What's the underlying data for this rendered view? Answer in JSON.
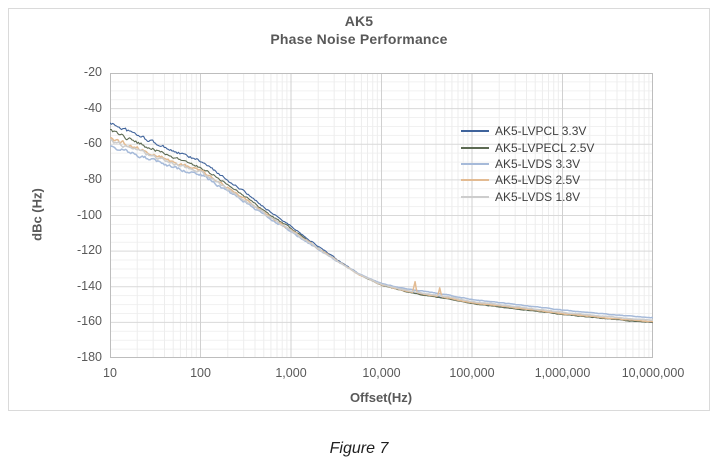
{
  "figure_caption": "Figure 7",
  "chart_data": {
    "type": "line",
    "title": "AK5",
    "subtitle": "Phase Noise Performance",
    "xlabel": "Offset(Hz)",
    "ylabel": "dBc (Hz)",
    "x_scale": "log",
    "x_range": [
      10,
      10000000
    ],
    "y_range": [
      -180,
      -20
    ],
    "y_major_step": 20,
    "y_minor_step": 5,
    "grid": true,
    "legend_position": "inside-upper-right",
    "x_ticks": [
      "10",
      "100",
      "1,000",
      "10,000",
      "100,000",
      "1,000,000",
      "10,000,000"
    ],
    "x_tick_values": [
      10,
      100,
      1000,
      10000,
      100000,
      1000000,
      10000000
    ],
    "y_ticks": [
      -20,
      -40,
      -60,
      -80,
      -100,
      -120,
      -140,
      -160,
      -180
    ],
    "grid_colors": {
      "major": "#d9d9d9",
      "minor": "#f1f1f1",
      "border": "#bdbdbd"
    },
    "series": [
      {
        "name": "AK5-LVPCL 3.3V",
        "color": "#3f639b",
        "points": [
          [
            10,
            -48.0
          ],
          [
            18,
            -53.8
          ],
          [
            32,
            -59.5
          ],
          [
            56,
            -64.8
          ],
          [
            100,
            -69.5
          ],
          [
            178,
            -78.2
          ],
          [
            316,
            -87.4
          ],
          [
            562,
            -97.0
          ],
          [
            1000,
            -106.0
          ],
          [
            1780,
            -115.4
          ],
          [
            3160,
            -124.5
          ],
          [
            5620,
            -132.8
          ],
          [
            10000,
            -138.8
          ],
          [
            17800,
            -142.3
          ],
          [
            31600,
            -144.8
          ],
          [
            56200,
            -146.7
          ],
          [
            100000,
            -149.3
          ],
          [
            178000,
            -150.7
          ],
          [
            316000,
            -152.3
          ],
          [
            562000,
            -153.9
          ],
          [
            1000000,
            -155.4
          ],
          [
            1780000,
            -156.6
          ],
          [
            3160000,
            -157.8
          ],
          [
            5620000,
            -159.0
          ],
          [
            10000000,
            -159.9
          ]
        ]
      },
      {
        "name": "AK5-LVPECL 2.5V",
        "color": "#5c6a52",
        "points": [
          [
            10,
            -52.7
          ],
          [
            18,
            -58.1
          ],
          [
            32,
            -63.5
          ],
          [
            56,
            -68.5
          ],
          [
            100,
            -72.8
          ],
          [
            178,
            -81.0
          ],
          [
            316,
            -89.8
          ],
          [
            562,
            -99.0
          ],
          [
            1000,
            -107.5
          ],
          [
            1780,
            -116.4
          ],
          [
            3160,
            -125.0
          ],
          [
            5620,
            -133.2
          ],
          [
            10000,
            -139.2
          ],
          [
            17800,
            -142.5
          ],
          [
            31600,
            -145.0
          ],
          [
            56200,
            -146.9
          ],
          [
            100000,
            -149.5
          ],
          [
            178000,
            -150.9
          ],
          [
            316000,
            -152.5
          ],
          [
            562000,
            -154.0
          ],
          [
            1000000,
            -155.6
          ],
          [
            1780000,
            -156.8
          ],
          [
            3160000,
            -158.0
          ],
          [
            5620000,
            -159.2
          ],
          [
            10000000,
            -160.1
          ]
        ]
      },
      {
        "name": "AK5-LVDS 3.3V",
        "color": "#a6bad9",
        "points": [
          [
            10,
            -61.0
          ],
          [
            18,
            -65.4
          ],
          [
            32,
            -69.7
          ],
          [
            56,
            -73.7
          ],
          [
            100,
            -77.0
          ],
          [
            178,
            -84.6
          ],
          [
            316,
            -92.6
          ],
          [
            562,
            -101.2
          ],
          [
            1000,
            -109.0
          ],
          [
            1780,
            -117.3
          ],
          [
            3160,
            -125.3
          ],
          [
            5620,
            -132.9
          ],
          [
            10000,
            -138.2
          ],
          [
            17800,
            -141.0
          ],
          [
            31600,
            -142.8
          ],
          [
            56200,
            -144.7
          ],
          [
            100000,
            -147.2
          ],
          [
            178000,
            -148.6
          ],
          [
            316000,
            -150.1
          ],
          [
            562000,
            -151.6
          ],
          [
            1000000,
            -153.1
          ],
          [
            1780000,
            -154.2
          ],
          [
            3160000,
            -155.4
          ],
          [
            5620000,
            -156.5
          ],
          [
            10000000,
            -157.4
          ]
        ]
      },
      {
        "name": "AK5-LVDS 2.5V",
        "color": "#e3bb92",
        "points": [
          [
            10,
            -56.2
          ],
          [
            18,
            -61.3
          ],
          [
            32,
            -66.2
          ],
          [
            56,
            -70.9
          ],
          [
            100,
            -74.8
          ],
          [
            178,
            -82.7
          ],
          [
            316,
            -91.1
          ],
          [
            562,
            -99.9
          ],
          [
            1000,
            -108.1
          ],
          [
            1780,
            -116.7
          ],
          [
            3160,
            -125.0
          ],
          [
            5620,
            -133.1
          ],
          [
            10000,
            -138.9
          ],
          [
            17800,
            -142.2
          ],
          [
            31600,
            -144.5
          ],
          [
            56200,
            -146.4
          ],
          [
            100000,
            -149.0
          ],
          [
            178000,
            -150.4
          ],
          [
            316000,
            -152.0
          ],
          [
            562000,
            -153.5
          ],
          [
            1000000,
            -155.1
          ],
          [
            1780000,
            -156.3
          ],
          [
            3160000,
            -157.5
          ],
          [
            5620000,
            -158.7
          ],
          [
            10000000,
            -159.6
          ]
        ],
        "spurs": [
          {
            "f": 23400,
            "dbc": -136.5
          },
          {
            "f": 44000,
            "dbc": -140.5
          }
        ]
      },
      {
        "name": "AK5-LVDS 1.8V",
        "color": "#cdcdcd",
        "points": [
          [
            10,
            -58.0
          ],
          [
            18,
            -62.8
          ],
          [
            32,
            -67.5
          ],
          [
            56,
            -71.9
          ],
          [
            100,
            -75.6
          ],
          [
            178,
            -83.4
          ],
          [
            316,
            -91.6
          ],
          [
            562,
            -100.4
          ],
          [
            1000,
            -108.4
          ],
          [
            1780,
            -116.9
          ],
          [
            3160,
            -125.2
          ],
          [
            5620,
            -133.1
          ],
          [
            10000,
            -138.7
          ],
          [
            17800,
            -141.8
          ],
          [
            31600,
            -143.9
          ],
          [
            56200,
            -145.8
          ],
          [
            100000,
            -148.3
          ],
          [
            178000,
            -149.7
          ],
          [
            316000,
            -151.3
          ],
          [
            562000,
            -152.8
          ],
          [
            1000000,
            -154.3
          ],
          [
            1780000,
            -155.5
          ],
          [
            3160000,
            -156.7
          ],
          [
            5620000,
            -157.9
          ],
          [
            10000000,
            -158.7
          ]
        ]
      }
    ]
  }
}
